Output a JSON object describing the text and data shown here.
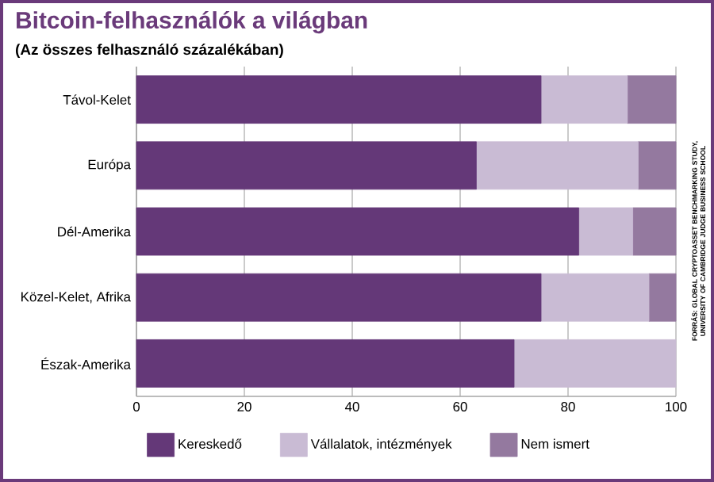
{
  "chart_data": {
    "type": "bar",
    "orientation": "horizontal",
    "stacked": true,
    "title": "Bitcoin-felhasználók a világban",
    "subtitle": "(Az összes felhasználó százalékában)",
    "categories": [
      "Távol-Kelet",
      "Európa",
      "Dél-Amerika",
      "Közel-Kelet, Afrika",
      "Észak-Amerika"
    ],
    "series": [
      {
        "name": "Kereskedő",
        "color": "#643878",
        "values": [
          75,
          63,
          82,
          75,
          70
        ]
      },
      {
        "name": "Vállalatok, intézmények",
        "color": "#c9bbd4",
        "values": [
          16,
          30,
          10,
          20,
          30
        ]
      },
      {
        "name": "Nem ismert",
        "color": "#94799f",
        "values": [
          9,
          7,
          8,
          5,
          0
        ]
      }
    ],
    "xlim": [
      0,
      100
    ],
    "xticks": [
      0,
      20,
      40,
      60,
      80,
      100
    ],
    "grid": "x",
    "legend": "bottom",
    "annotations": [
      "FORRÁS: GLOBAL CRYPTOASSET BENCHMARKING STUDY, UNIVERSITY OF CAMBRIDGE JUDGE BUSINESS SCHOOL"
    ]
  }
}
